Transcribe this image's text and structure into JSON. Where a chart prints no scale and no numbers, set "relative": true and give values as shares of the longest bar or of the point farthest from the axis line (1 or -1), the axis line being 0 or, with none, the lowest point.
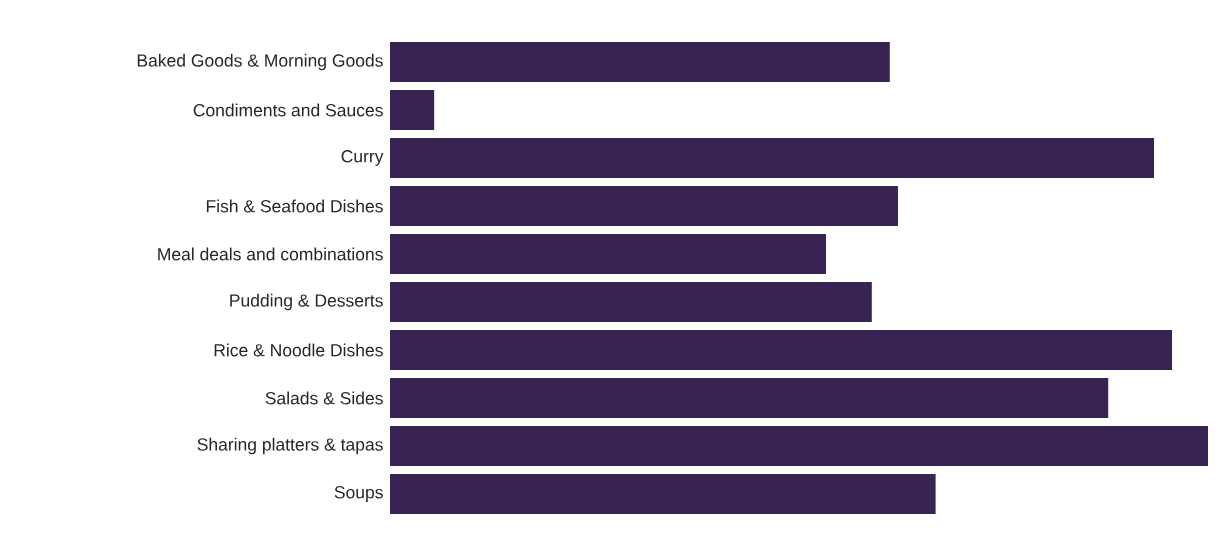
{
  "chart_data": {
    "type": "bar",
    "orientation": "horizontal",
    "relative": true,
    "categories": [
      "Baked Goods & Morning Goods",
      "Condiments and Sauces",
      "Curry",
      "Fish & Seafood Dishes",
      "Meal deals and combinations",
      "Pudding & Desserts",
      "Rice & Noodle Dishes",
      "Salads & Sides",
      "Sharing platters & tapas",
      "Soups"
    ],
    "values": [
      0.611,
      0.054,
      0.934,
      0.621,
      0.533,
      0.589,
      0.956,
      0.878,
      1.0,
      0.667
    ],
    "color": "#372453"
  }
}
